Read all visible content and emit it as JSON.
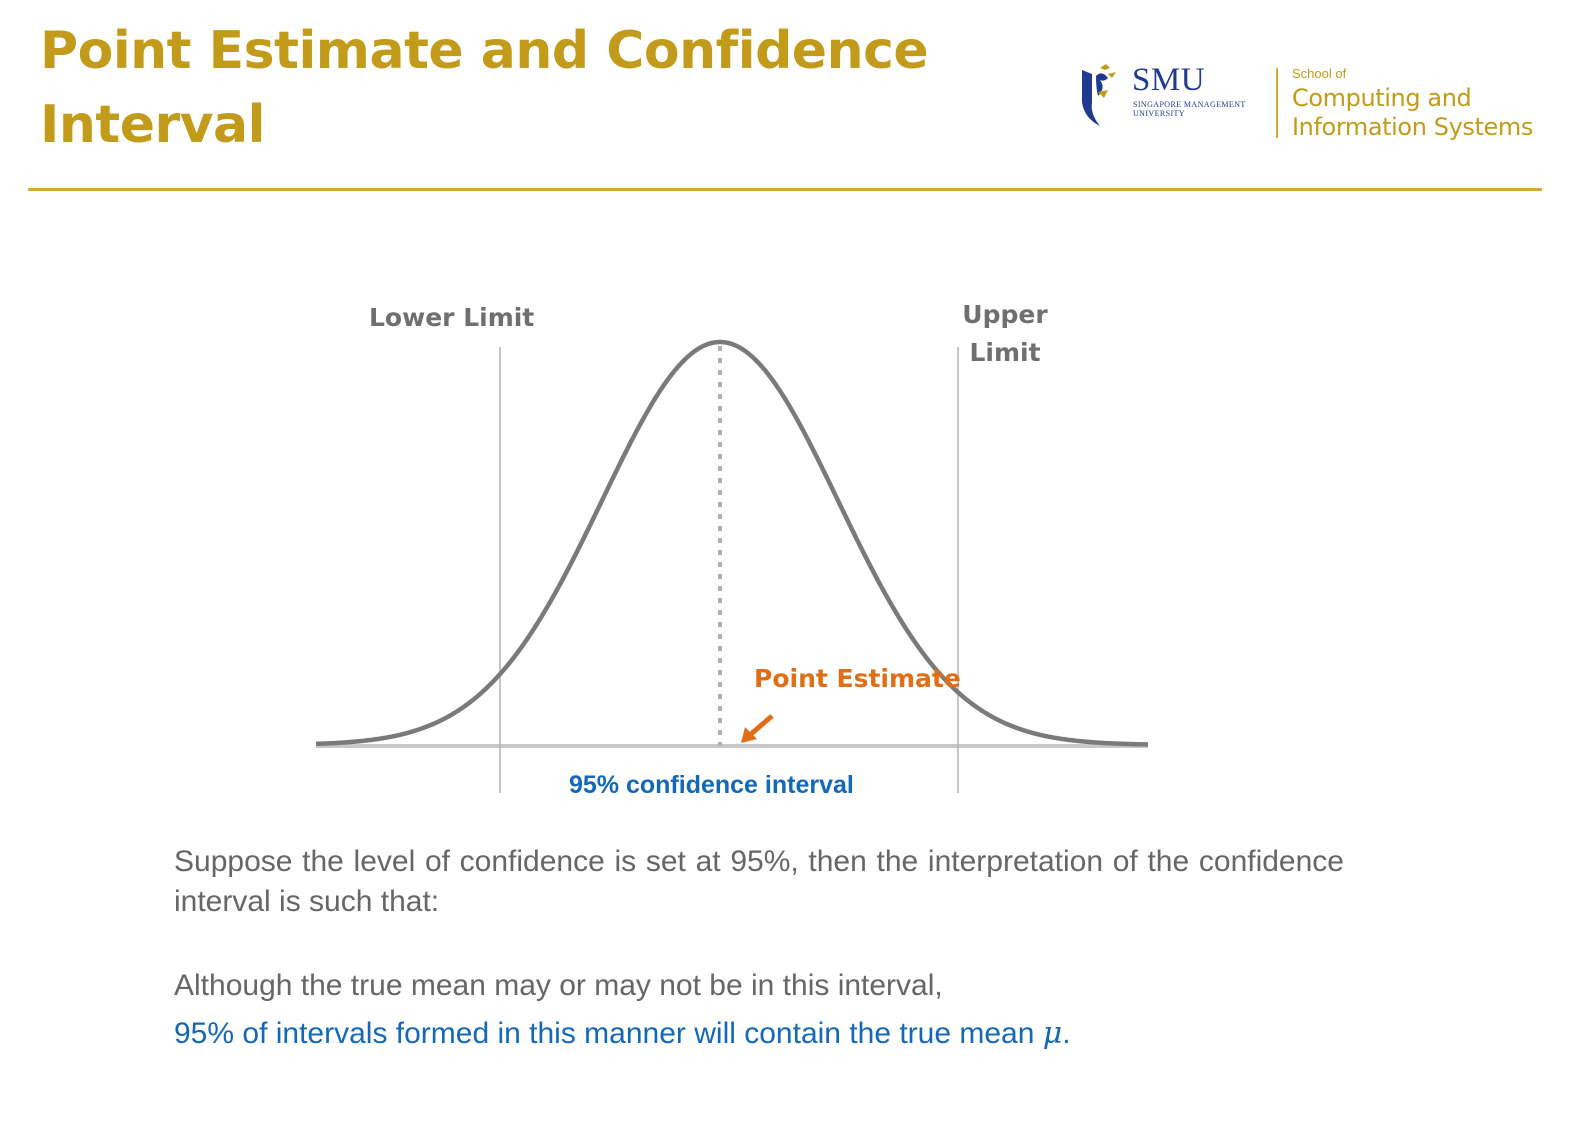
{
  "slide": {
    "title_line1": "Point Estimate and Confidence",
    "title_line2": "Interval",
    "accent_color": "#c39b1a"
  },
  "logo": {
    "university_abbr": "SMU",
    "university_line1": "SINGAPORE MANAGEMENT",
    "university_line2": "UNIVERSITY",
    "school_prefix": "School of",
    "school_line1": "Computing and",
    "school_line2": "Information Systems",
    "brand_color": "#1f3a8f"
  },
  "diagram": {
    "lower_limit_label": "Lower Limit",
    "upper_limit_line1": "Upper",
    "upper_limit_line2": "Limit",
    "point_estimate_label": "Point Estimate",
    "interval_label": "95% confidence interval",
    "curve_type": "normal distribution",
    "label_color": "#6f6f6f",
    "point_estimate_color": "#e06e16",
    "interval_color": "#1468b8"
  },
  "body": {
    "paragraph1": "Suppose the level of confidence is set at 95%, then the interpretation of the confidence interval is such that:",
    "paragraph2": "Although the true mean may or may not be in this interval,",
    "paragraph3_text": "95% of intervals formed in this manner will contain the true mean ",
    "paragraph3_symbol": "μ",
    "paragraph3_end": "."
  }
}
